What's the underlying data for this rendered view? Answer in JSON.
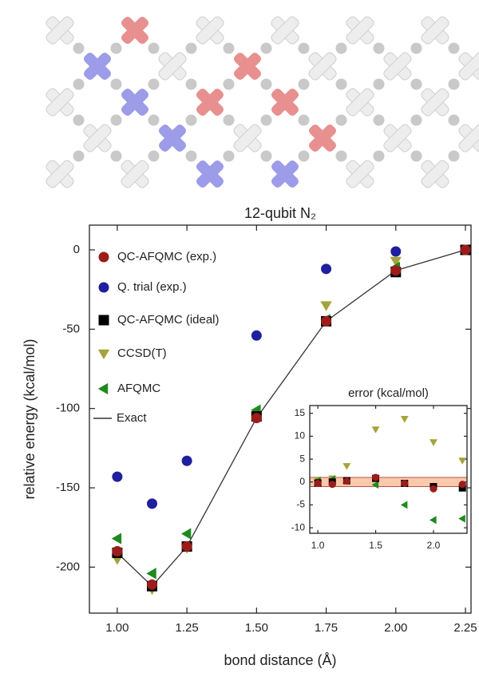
{
  "chart_data": [
    {
      "type": "scatter",
      "title": "12-qubit N₂",
      "x_label": "bond distance (Å)",
      "y_label": "relative energy (kcal/mol)",
      "x": [
        1.0,
        1.125,
        1.25,
        1.5,
        1.75,
        2.0,
        2.25
      ],
      "xlim": [
        0.9,
        2.27
      ],
      "xticks": [
        {
          "value": 1.0,
          "label": "1.00"
        },
        1.25,
        {
          "value": 1.5,
          "label": "1.50"
        },
        1.75,
        {
          "value": 2.0,
          "label": "2.00"
        },
        2.25
      ],
      "ylim": [
        -229,
        15.6
      ],
      "yticks": [
        0,
        -50,
        -100,
        -150,
        -200
      ],
      "legend": "upper left",
      "series": [
        {
          "name": "Exact",
          "color": "#333333",
          "marker": "line",
          "values": [
            -191,
            -212,
            -187,
            -106,
            -45,
            -13,
            0
          ]
        },
        {
          "name": "Q. trial (exp.)",
          "color": "#1f1f9e",
          "marker": "circle",
          "values": [
            -143,
            -160,
            -133,
            -54,
            -12,
            -1,
            0
          ]
        },
        {
          "name": "CCSD(T)",
          "color": "#a6a33a",
          "marker": "triangle-down",
          "values": [
            -195,
            -214,
            -188,
            -105,
            -35,
            -7,
            0
          ]
        },
        {
          "name": "AFQMC",
          "color": "#1e8a1e",
          "marker": "triangle-left",
          "values": [
            -182,
            -204,
            -179,
            -101,
            -44,
            -11,
            0
          ]
        },
        {
          "name": "QC-AFQMC (ideal)",
          "color": "#000000",
          "marker": "square",
          "values": [
            -191,
            -212,
            -187,
            -105,
            -45,
            -14,
            0
          ]
        },
        {
          "name": "QC-AFQMC (exp.)",
          "color": "#9c1c1c",
          "marker": "circle",
          "values": [
            -190,
            -211,
            -187,
            -106,
            -45,
            -13,
            0
          ]
        }
      ],
      "legend_order": [
        5,
        1,
        4,
        2,
        3,
        0
      ]
    },
    {
      "type": "scatter",
      "title": "error (kcal/mol)",
      "x": [
        1.0,
        1.125,
        1.25,
        1.5,
        1.75,
        2.0,
        2.25
      ],
      "xlim": [
        0.93,
        2.29
      ],
      "xticks": [
        {
          "value": 1.0,
          "label": "1.0"
        },
        1.5,
        {
          "value": 2.0,
          "label": "2.0"
        }
      ],
      "ylim": [
        -11.2,
        16.7
      ],
      "yticks": [
        15,
        10,
        5,
        0,
        -5,
        -10
      ],
      "shade_range": [
        -1,
        1
      ],
      "shade_color": "#f9c9a9",
      "series": [
        {
          "color": "#a6a33a",
          "marker": "triangle-down",
          "values": [
            0.5,
            0.8,
            3.5,
            11.5,
            13.8,
            8.7,
            4.7
          ]
        },
        {
          "color": "#1e8a1e",
          "marker": "triangle-left",
          "values": [
            0.3,
            0.6,
            0.2,
            -0.6,
            -5.0,
            -8.3,
            -8.0
          ]
        },
        {
          "color": "#000000",
          "marker": "square",
          "values": [
            -0.2,
            0.0,
            0.3,
            0.8,
            -0.3,
            -1.0,
            -1.3
          ]
        },
        {
          "color": "#9c1c1c",
          "marker": "circle",
          "values": [
            -0.3,
            -0.5,
            0.2,
            1.0,
            -0.3,
            -1.5,
            -0.5
          ]
        }
      ]
    }
  ]
}
